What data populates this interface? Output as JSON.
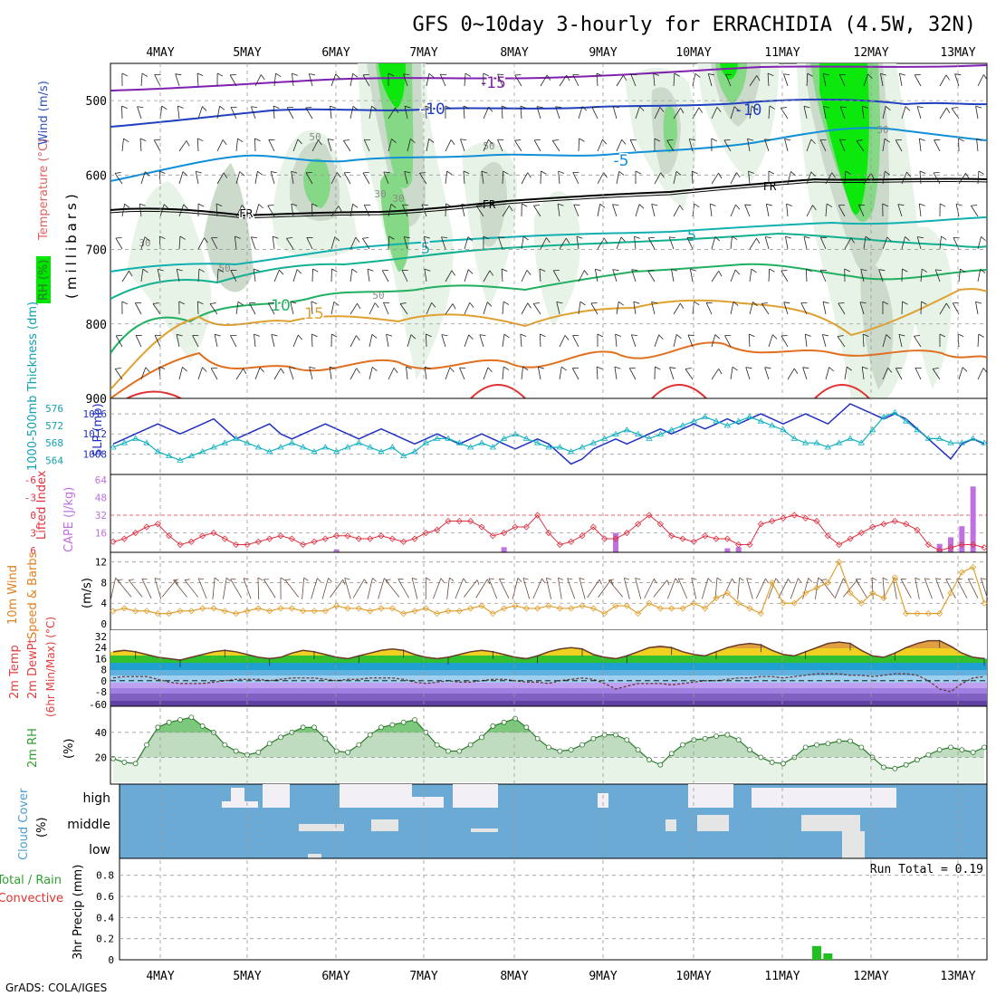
{
  "title": "GFS 0~10day 3-hourly for ERRACHIDIA (4.5W, 32N)",
  "footer": "GrADS: COLA/IGES",
  "colors": {
    "green": "#00e600",
    "temp": "#e05050",
    "wind": "#3050c0",
    "rh": "#40a040",
    "cloud": "#6aaad4",
    "cloudfill": "#f2f0f5"
  },
  "chart_data": [
    {
      "type": "contour",
      "name": "upper-air",
      "dates": [
        "4MAY",
        "5MAY",
        "6MAY",
        "7MAY",
        "8MAY",
        "9MAY",
        "10MAY",
        "11MAY",
        "12MAY",
        "13MAY"
      ],
      "ylabel_parts": [
        "RH (%)",
        "Temperature (°C)",
        "Wind (m/s)"
      ],
      "ylabel_side": "(millibars)",
      "y_ticks": [
        500,
        600,
        700,
        800,
        900
      ],
      "ylim": [
        450,
        900
      ],
      "isotherms": [
        {
          "label": "-15",
          "level": 480
        },
        {
          "label": "-10",
          "level": 520
        },
        {
          "label": "-5",
          "level": 570
        },
        {
          "label": "FR",
          "level": 630
        },
        {
          "label": "5",
          "level": 690
        },
        {
          "label": "10",
          "level": 750
        },
        {
          "label": "15",
          "level": 800
        }
      ],
      "rh_labels": [
        "30",
        "50",
        "50",
        "30",
        "50",
        "50",
        "30",
        "50"
      ]
    },
    {
      "type": "line",
      "name": "thickness-slp",
      "ylabel_left": "1000-500mb Thickness (dm)",
      "ylabel_right": "SLP (mb)",
      "left_ticks": [
        "576",
        "572",
        "568",
        "564"
      ],
      "right_ticks": [
        "1016",
        "1012",
        "1008"
      ],
      "slp": [
        1010,
        1011,
        1012,
        1013,
        1014,
        1013,
        1012,
        1013,
        1014,
        1015,
        1013,
        1011,
        1012,
        1013,
        1014,
        1012,
        1011,
        1012,
        1013,
        1014,
        1013,
        1012,
        1011,
        1012,
        1013,
        1012,
        1011,
        1010,
        1011,
        1012,
        1011,
        1010,
        1011,
        1012,
        1011,
        1010,
        1009,
        1010,
        1011,
        1010,
        1008,
        1006,
        1007,
        1009,
        1010,
        1011,
        1010,
        1011,
        1012,
        1013,
        1012,
        1013,
        1014,
        1013,
        1014,
        1015,
        1014,
        1015,
        1016,
        1015,
        1014,
        1015,
        1016,
        1015,
        1014,
        1016,
        1018,
        1017,
        1016,
        1015,
        1016,
        1015,
        1013,
        1011,
        1009,
        1007,
        1010,
        1011,
        1010
      ],
      "thickness": [
        567,
        568,
        569,
        568,
        566,
        565,
        564,
        565,
        566,
        567,
        568,
        569,
        568,
        567,
        566,
        567,
        568,
        567,
        566,
        567,
        566,
        567,
        568,
        567,
        566,
        567,
        565,
        566,
        568,
        569,
        569,
        568,
        567,
        568,
        567,
        569,
        570,
        569,
        568,
        567,
        567,
        566,
        567,
        568,
        569,
        570,
        571,
        570,
        569,
        570,
        571,
        572,
        573,
        574,
        573,
        572,
        573,
        574,
        573,
        572,
        571,
        569,
        568,
        568,
        567,
        568,
        569,
        568,
        571,
        574,
        575,
        573,
        571,
        569,
        569,
        568,
        568,
        569,
        568
      ]
    },
    {
      "type": "bar+line",
      "name": "cape-li",
      "ylabel_left": "Lifted Index",
      "ylabel_right": "CAPE (J/kg)",
      "li_ticks": [
        "-6",
        "-3",
        "0",
        "3",
        "6"
      ],
      "cape_ticks": [
        "64",
        "48",
        "32",
        "16"
      ],
      "cape": [
        0,
        0,
        0,
        0,
        0,
        0,
        0,
        0,
        0,
        0,
        0,
        0,
        0,
        0,
        0,
        0,
        0,
        0,
        0,
        0,
        1,
        0,
        0,
        0,
        0,
        0,
        0,
        0,
        0,
        0,
        0,
        0,
        0,
        0,
        0,
        3,
        0,
        0,
        0,
        0,
        0,
        0,
        0,
        0,
        0,
        16,
        0,
        0,
        0,
        0,
        0,
        0,
        0,
        0,
        0,
        2,
        3,
        0,
        0,
        0,
        0,
        0,
        0,
        0,
        0,
        0,
        0,
        0,
        0,
        0,
        0,
        0,
        0,
        0,
        6,
        12,
        22,
        58,
        0
      ],
      "li": [
        4.5,
        4,
        3,
        2,
        1.5,
        3.5,
        5,
        4.5,
        3.5,
        3,
        4,
        5,
        5,
        4.5,
        4,
        3.5,
        4,
        5,
        4.5,
        4,
        3.5,
        3.5,
        4,
        4,
        3.5,
        4,
        4.5,
        4,
        3,
        2.5,
        1,
        1,
        1,
        2,
        3.5,
        3,
        2,
        2,
        0,
        3,
        5,
        4.5,
        3.5,
        2,
        4,
        4,
        3,
        1.5,
        0,
        1.5,
        3.5,
        4,
        4.5,
        3.5,
        4,
        4,
        5,
        5,
        1.5,
        1,
        0.5,
        0,
        0.5,
        1,
        3.5,
        5,
        4,
        3,
        2,
        1.5,
        1,
        1.5,
        2.5,
        5,
        6,
        5.5,
        5,
        5,
        5.5
      ]
    },
    {
      "type": "line",
      "name": "wind10m",
      "ylabel_left": "10m Wind",
      "ylabel_mid": "Speed & Barbs",
      "ylabel_right": "(m/s)",
      "y_ticks": [
        "12",
        "8",
        "4",
        "0"
      ],
      "speed": [
        2.5,
        3,
        2.5,
        2.5,
        2,
        2,
        2.5,
        2.5,
        3,
        3,
        2.5,
        2,
        2.5,
        3,
        2.5,
        3,
        3,
        2.5,
        2.5,
        2.5,
        3.5,
        3,
        3,
        2.5,
        3,
        3,
        2,
        2.5,
        3,
        2,
        2.5,
        2.5,
        3,
        3.5,
        2,
        3,
        3.5,
        3,
        3,
        3.5,
        3,
        3,
        3.5,
        3,
        2,
        3.5,
        3.5,
        2,
        4,
        3,
        3,
        3,
        4,
        3,
        5,
        6,
        4,
        3,
        2,
        8,
        4,
        4,
        6,
        7,
        8,
        12,
        6,
        4,
        6,
        5,
        9,
        2,
        2,
        2,
        2,
        6,
        10,
        11,
        4
      ]
    },
    {
      "type": "area",
      "name": "temp-dewpt",
      "ylabel_left": "2m Temp",
      "ylabel_mid": "2m DewPt",
      "ylabel_right": "(6hr Min/Max) (°C)",
      "y_ticks": [
        "32",
        "24",
        "16",
        "8",
        "0",
        "-8",
        "-60"
      ],
      "temp": [
        21,
        22,
        21,
        19,
        17,
        16,
        15,
        17,
        19,
        21,
        22,
        21,
        19,
        17,
        16,
        17,
        20,
        22,
        21,
        19,
        17,
        16,
        18,
        20,
        22,
        23,
        22,
        19,
        17,
        16,
        17,
        19,
        21,
        22,
        21,
        19,
        17,
        16,
        18,
        21,
        23,
        24,
        23,
        19,
        17,
        16,
        18,
        21,
        24,
        25,
        24,
        21,
        19,
        18,
        21,
        24,
        26,
        27,
        26,
        22,
        19,
        18,
        21,
        24,
        27,
        28,
        27,
        22,
        18,
        17,
        20,
        24,
        27,
        29,
        29,
        25,
        20,
        17,
        16
      ],
      "dewpt": [
        2,
        3,
        3,
        3,
        1,
        -1,
        -2,
        -2,
        -2,
        -1,
        0,
        1,
        1,
        1,
        0,
        1,
        2,
        2,
        2,
        1,
        0,
        1,
        1,
        2,
        2,
        2,
        1,
        -1,
        -2,
        -1,
        0,
        -1,
        -1,
        0,
        1,
        1,
        0,
        -1,
        -1,
        -2,
        0,
        1,
        2,
        1,
        -2,
        -6,
        -4,
        -2,
        -2,
        -2,
        -3,
        -2,
        -1,
        0,
        0,
        1,
        2,
        2,
        3,
        3,
        2,
        3,
        4,
        5,
        5,
        5,
        4,
        4,
        3,
        4,
        5,
        5,
        4,
        0,
        -6,
        -8,
        -2,
        2,
        3
      ]
    },
    {
      "type": "area",
      "name": "rh2m",
      "ylabel_left": "2m RH",
      "ylabel_right": "(%)",
      "y_ticks": [
        "40",
        "20"
      ],
      "rh": [
        19,
        16,
        15,
        30,
        44,
        48,
        50,
        52,
        45,
        40,
        30,
        25,
        22,
        24,
        31,
        36,
        40,
        44,
        44,
        35,
        25,
        24,
        30,
        38,
        44,
        46,
        48,
        50,
        40,
        30,
        25,
        25,
        30,
        36,
        45,
        48,
        51,
        44,
        35,
        28,
        25,
        26,
        30,
        35,
        38,
        38,
        34,
        26,
        18,
        14,
        23,
        30,
        34,
        35,
        37,
        38,
        34,
        26,
        20,
        16,
        15,
        20,
        28,
        30,
        31,
        33,
        33,
        28,
        20,
        12,
        11,
        14,
        18,
        22,
        26,
        28,
        26,
        24,
        28
      ]
    },
    {
      "type": "heatmap",
      "name": "cloud-cover",
      "ylabel_left": "Cloud Cover",
      "ylabel_right": "(%)",
      "levels": [
        "high",
        "middle",
        "low"
      ]
    },
    {
      "type": "bar",
      "name": "precip",
      "ylabel_left": "Total / Rain",
      "ylabel_red": "Convective",
      "ylabel_right": "3hr Precip (mm)",
      "y_ticks": [
        "0.8",
        "0.6",
        "0.4",
        "0.2",
        "0"
      ],
      "ylim": [
        0,
        0.9
      ],
      "run_total": "Run Total = 0.19",
      "bars": [
        {
          "step": 62,
          "value": 0.13
        },
        {
          "step": 63,
          "value": 0.06
        }
      ]
    }
  ]
}
